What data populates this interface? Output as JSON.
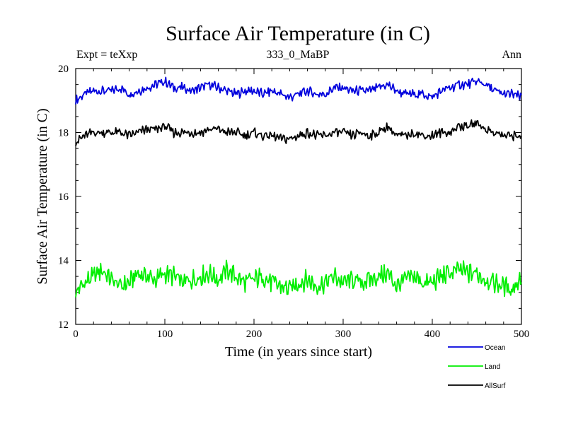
{
  "chart_data": {
    "type": "line",
    "title": "Surface Air Temperature (in C)",
    "subtitle": "333_0_MaBP",
    "left_label": "Expt = teXxp",
    "right_label": "Ann",
    "xlabel": "Time (in years since start)",
    "ylabel": "Surface Air Temperature (in C)",
    "xlim": [
      0,
      500
    ],
    "ylim": [
      12,
      20
    ],
    "xticks": [
      0,
      100,
      200,
      300,
      400,
      500
    ],
    "yticks": [
      12,
      14,
      16,
      18,
      20
    ],
    "grid": false,
    "legend_position": "bottom-right",
    "series": [
      {
        "name": "Ocean",
        "color": "#0000dd",
        "x": [
          0,
          10,
          20,
          30,
          40,
          50,
          60,
          70,
          80,
          90,
          100,
          110,
          120,
          130,
          140,
          150,
          160,
          170,
          180,
          190,
          200,
          210,
          220,
          230,
          240,
          250,
          260,
          270,
          280,
          290,
          300,
          310,
          320,
          330,
          340,
          350,
          360,
          370,
          380,
          390,
          400,
          410,
          420,
          430,
          440,
          450,
          460,
          470,
          480,
          490,
          500
        ],
        "values": [
          19.0,
          19.2,
          19.3,
          19.3,
          19.3,
          19.4,
          19.2,
          19.3,
          19.4,
          19.5,
          19.6,
          19.4,
          19.4,
          19.3,
          19.4,
          19.5,
          19.4,
          19.3,
          19.2,
          19.3,
          19.3,
          19.2,
          19.3,
          19.2,
          19.1,
          19.2,
          19.3,
          19.2,
          19.2,
          19.4,
          19.4,
          19.3,
          19.3,
          19.3,
          19.4,
          19.5,
          19.3,
          19.2,
          19.2,
          19.2,
          19.1,
          19.3,
          19.4,
          19.5,
          19.5,
          19.6,
          19.5,
          19.3,
          19.2,
          19.2,
          19.1
        ]
      },
      {
        "name": "Land",
        "color": "#00ee00",
        "x": [
          0,
          10,
          20,
          30,
          40,
          50,
          60,
          70,
          80,
          90,
          100,
          110,
          120,
          130,
          140,
          150,
          160,
          170,
          180,
          190,
          200,
          210,
          220,
          230,
          240,
          250,
          260,
          270,
          280,
          290,
          300,
          310,
          320,
          330,
          340,
          350,
          360,
          370,
          380,
          390,
          400,
          410,
          420,
          430,
          440,
          450,
          460,
          470,
          480,
          490,
          500
        ],
        "values": [
          13.0,
          13.3,
          13.5,
          13.7,
          13.4,
          13.2,
          13.3,
          13.6,
          13.5,
          13.4,
          13.6,
          13.5,
          13.3,
          13.4,
          13.5,
          13.6,
          13.4,
          13.7,
          13.5,
          13.3,
          13.4,
          13.5,
          13.3,
          13.2,
          13.1,
          13.3,
          13.4,
          13.2,
          13.3,
          13.5,
          13.3,
          13.4,
          13.3,
          13.4,
          13.5,
          13.6,
          13.2,
          13.4,
          13.5,
          13.3,
          13.3,
          13.5,
          13.6,
          13.7,
          13.6,
          13.6,
          13.4,
          13.3,
          13.2,
          13.1,
          13.5
        ]
      },
      {
        "name": "AllSurf",
        "color": "#000000",
        "x": [
          0,
          10,
          20,
          30,
          40,
          50,
          60,
          70,
          80,
          90,
          100,
          110,
          120,
          130,
          140,
          150,
          160,
          170,
          180,
          190,
          200,
          210,
          220,
          230,
          240,
          250,
          260,
          270,
          280,
          290,
          300,
          310,
          320,
          330,
          340,
          350,
          360,
          370,
          380,
          390,
          400,
          410,
          420,
          430,
          440,
          450,
          460,
          470,
          480,
          490,
          500
        ],
        "values": [
          17.7,
          17.9,
          18.0,
          18.0,
          18.0,
          18.0,
          17.9,
          18.0,
          18.1,
          18.1,
          18.2,
          18.0,
          18.0,
          18.0,
          18.0,
          18.1,
          18.1,
          18.0,
          18.0,
          17.9,
          18.0,
          17.9,
          17.9,
          17.8,
          17.8,
          17.9,
          18.0,
          17.9,
          17.9,
          18.0,
          18.0,
          17.9,
          18.0,
          17.9,
          18.0,
          18.2,
          17.9,
          17.9,
          18.0,
          17.9,
          17.9,
          18.0,
          18.0,
          18.2,
          18.2,
          18.3,
          18.1,
          18.0,
          17.9,
          17.9,
          17.9
        ]
      }
    ]
  }
}
